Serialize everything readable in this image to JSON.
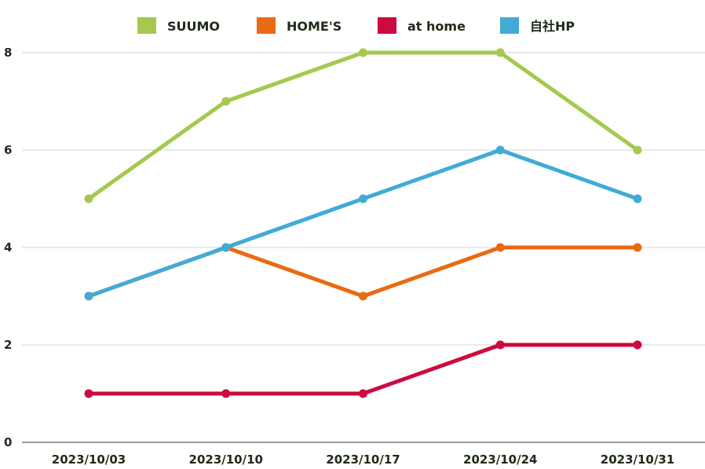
{
  "chart_data": {
    "type": "line",
    "title": "",
    "xlabel": "",
    "ylabel": "",
    "categories": [
      "2023/10/03",
      "2023/10/10",
      "2023/10/17",
      "2023/10/24",
      "2023/10/31"
    ],
    "ylim": [
      0,
      8
    ],
    "yticks": [
      "0",
      "2",
      "4",
      "6",
      "8"
    ],
    "grid": true,
    "legend_position": "top",
    "series": [
      {
        "name": "SUUMO",
        "color": "#a4c94e",
        "values": [
          5,
          7,
          8,
          8,
          6
        ]
      },
      {
        "name": "HOME'S",
        "color": "#ea6a12",
        "values": [
          3,
          4,
          3,
          4,
          4
        ]
      },
      {
        "name": "at home",
        "color": "#cc0a3e",
        "values": [
          1,
          1,
          1,
          2,
          2
        ]
      },
      {
        "name": "自社HP",
        "color": "#41abd6",
        "values": [
          3,
          4,
          5,
          6,
          5
        ]
      }
    ]
  }
}
